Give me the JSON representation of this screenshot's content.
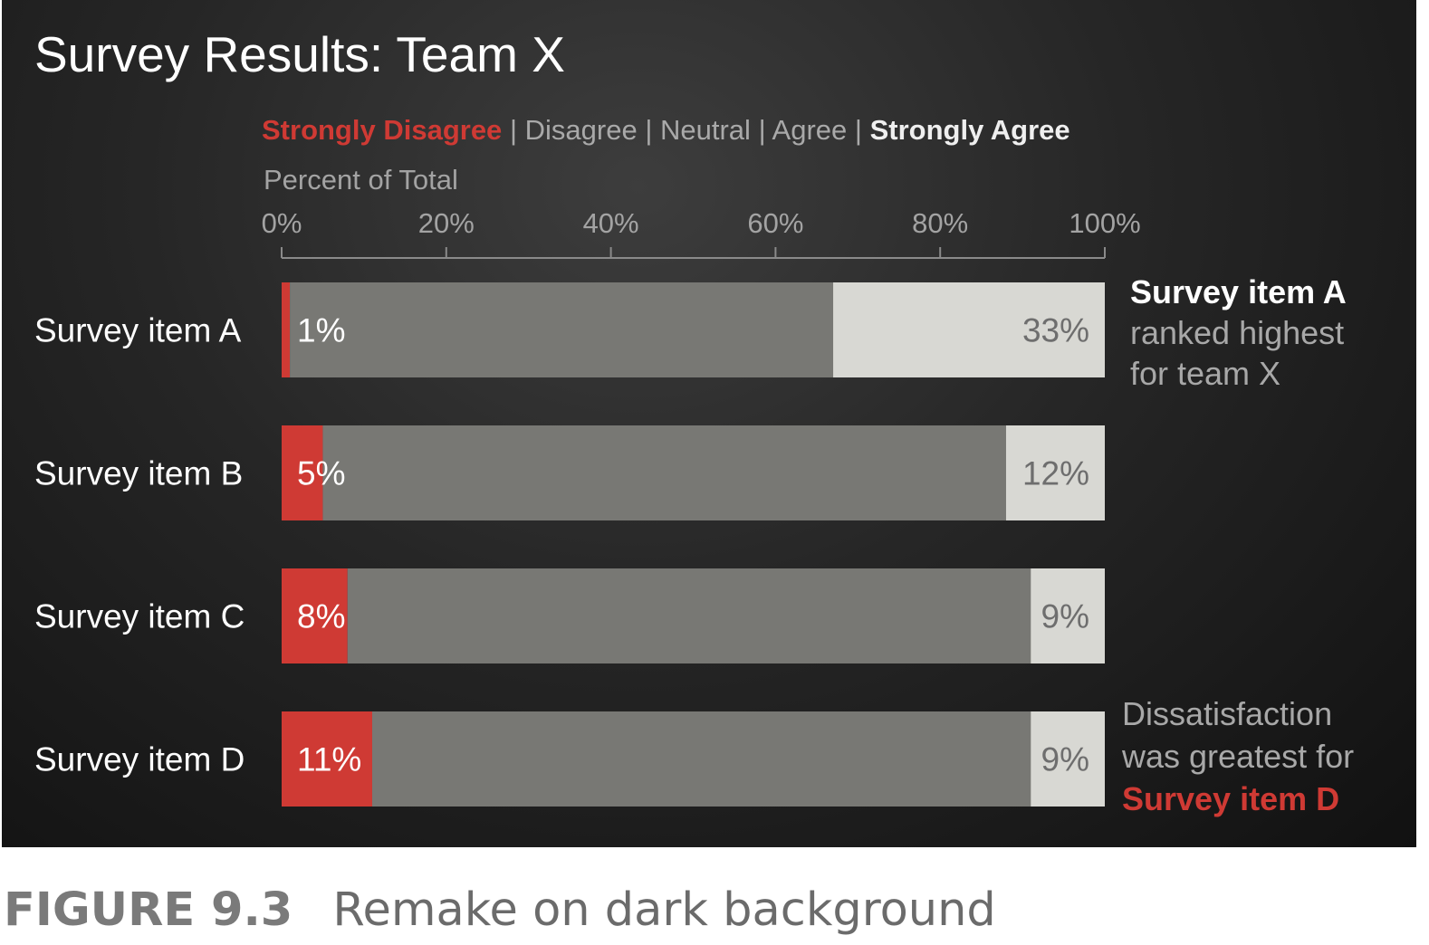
{
  "title": "Survey Results: Team X",
  "legend": [
    {
      "label": "Strongly Disagree",
      "style": "sd"
    },
    {
      "label": "Disagree",
      "style": "plain"
    },
    {
      "label": "Neutral",
      "style": "plain"
    },
    {
      "label": "Agree",
      "style": "plain"
    },
    {
      "label": "Strongly Agree",
      "style": "sa"
    }
  ],
  "legend_separator": "|",
  "colors": {
    "strongly_disagree": "#cf3a34",
    "middle": "#787874",
    "strongly_agree": "#d8d8d3",
    "background": "#1e1e1e"
  },
  "chart_data": {
    "type": "bar",
    "orientation": "horizontal",
    "stacked": true,
    "title": "Survey Results: Team X",
    "xlabel": "Percent of Total",
    "xlim": [
      0,
      100
    ],
    "xticks": [
      "0%",
      "20%",
      "40%",
      "60%",
      "80%",
      "100%"
    ],
    "categories": [
      "Survey item A",
      "Survey item B",
      "Survey item C",
      "Survey item D"
    ],
    "series": [
      {
        "name": "Strongly Disagree",
        "values": [
          1,
          5,
          8,
          11
        ],
        "labels": [
          "1%",
          "5%",
          "8%",
          "11%"
        ]
      },
      {
        "name": "Disagree | Neutral | Agree",
        "values": [
          66,
          83,
          83,
          80
        ]
      },
      {
        "name": "Strongly Agree",
        "values": [
          33,
          12,
          9,
          9
        ],
        "labels": [
          "33%",
          "12%",
          "9%",
          "9%"
        ]
      }
    ],
    "grid": false,
    "legend_placement": "top"
  },
  "annotations": {
    "item_a": {
      "bold": "Survey item A",
      "line2": "ranked highest",
      "line3": "for team X"
    },
    "item_d": {
      "line1": "Dissatisfaction",
      "line2": "was greatest for",
      "highlight": "Survey item D"
    }
  },
  "caption": {
    "figure": "FIGURE 9.3",
    "text": "Remake on dark background"
  }
}
